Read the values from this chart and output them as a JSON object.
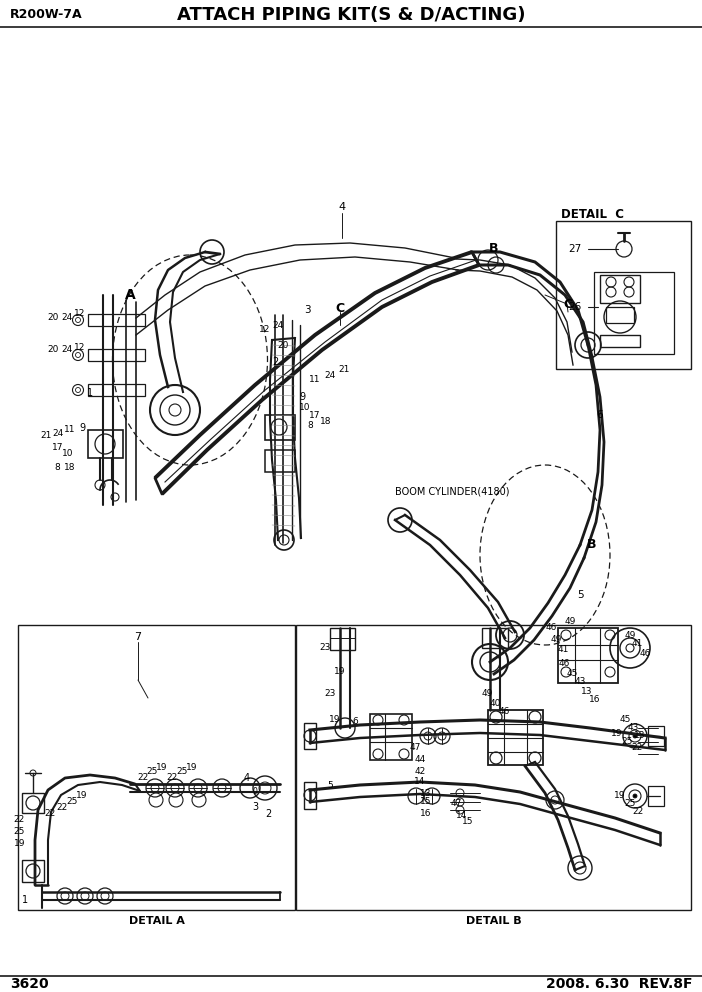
{
  "title": "ATTACH PIPING KIT(S & D/ACTING)",
  "model": "R200W-7A",
  "page": "3620",
  "date": "2008. 6.30  REV.8F",
  "bg_color": "#ffffff",
  "line_color": "#1a1a1a",
  "detail_c_label": "DETAIL  C",
  "detail_a_label": "DETAIL A",
  "detail_b_label": "DETAIL B",
  "boom_label": "BOOM CYLINDER(4180)"
}
